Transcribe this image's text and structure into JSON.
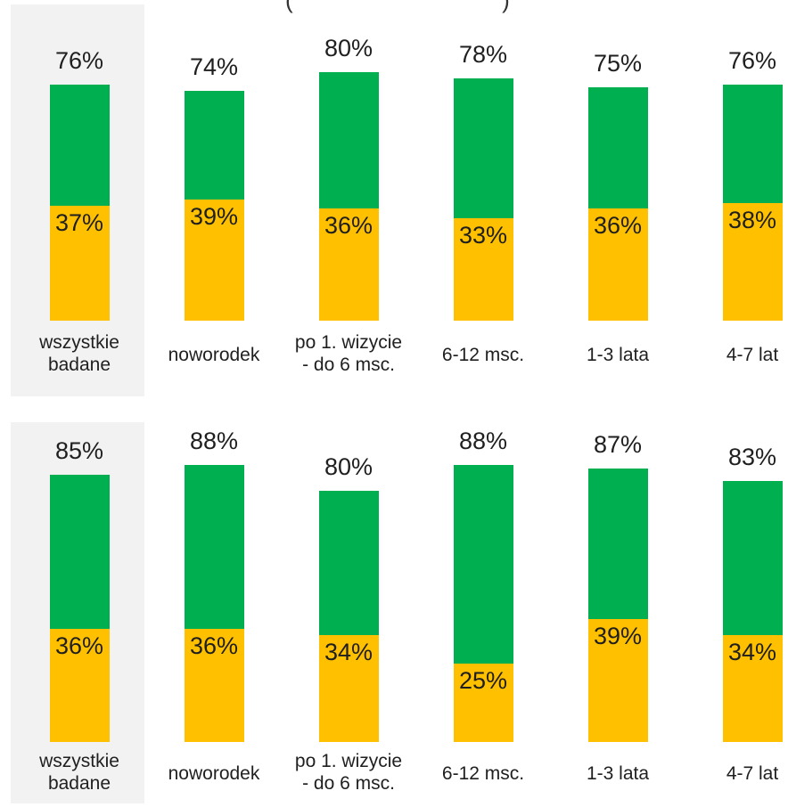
{
  "title_fragment": "(",
  "title_fragment_right": ")",
  "colors": {
    "total": "#00b050",
    "subset": "#ffc000",
    "highlight_bg": "#f2f2f2"
  },
  "chart_data": [
    {
      "type": "bar",
      "categories": [
        "wszystkie\nbadane",
        "noworodek",
        "po 1. wizycie\n- do 6 msc.",
        "6-12 msc.",
        "1-3 lata",
        "4-7 lat"
      ],
      "series": [
        {
          "values": [
            76,
            74,
            80,
            78,
            75,
            76
          ],
          "labels": [
            "76%",
            "74%",
            "80%",
            "78%",
            "75%",
            "76%"
          ]
        },
        {
          "values": [
            37,
            39,
            36,
            33,
            36,
            38
          ],
          "labels": [
            "37%",
            "39%",
            "36%",
            "33%",
            "36%",
            "38%"
          ]
        }
      ],
      "ylim": [
        0,
        100
      ],
      "grid": false
    },
    {
      "type": "bar",
      "categories": [
        "wszystkie\nbadane",
        "noworodek",
        "po 1. wizycie\n- do 6 msc.",
        "6-12 msc.",
        "1-3 lata",
        "4-7 lat"
      ],
      "series": [
        {
          "values": [
            85,
            88,
            80,
            88,
            87,
            83
          ],
          "labels": [
            "85%",
            "88%",
            "80%",
            "88%",
            "87%",
            "83%"
          ]
        },
        {
          "values": [
            36,
            36,
            34,
            25,
            39,
            34
          ],
          "labels": [
            "36%",
            "36%",
            "34%",
            "25%",
            "39%",
            "34%"
          ]
        }
      ],
      "ylim": [
        0,
        100
      ],
      "grid": false
    }
  ]
}
